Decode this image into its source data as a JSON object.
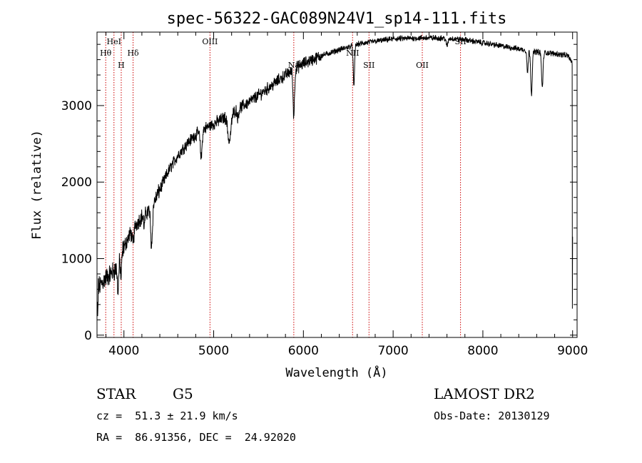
{
  "chart_data": {
    "type": "line",
    "title": "spec-56322-GAC089N24V1_sp14-111.fits",
    "xlabel": "Wavelength (Å)",
    "ylabel": "Flux (relative)",
    "xlim": [
      3700,
      9050
    ],
    "ylim": [
      -30,
      3960
    ],
    "xticks": [
      4000,
      5000,
      6000,
      7000,
      8000,
      9000
    ],
    "yticks": [
      0,
      1000,
      2000,
      3000
    ],
    "color": "#000000",
    "line_color": "#cc0000",
    "spectral_lines": [
      {
        "label": "Hθ",
        "x": 3797,
        "row": 2
      },
      {
        "label": "HeI",
        "x": 3889,
        "row": 1
      },
      {
        "label": "H",
        "x": 3970,
        "row": 3
      },
      {
        "label": "Hδ",
        "x": 4102,
        "row": 2
      },
      {
        "label": "OIII",
        "x": 4959,
        "row": 1
      },
      {
        "label": "Na",
        "x": 5893,
        "row": 3
      },
      {
        "label": "NII",
        "x": 6548,
        "row": 2
      },
      {
        "label": "SII",
        "x": 6731,
        "row": 3
      },
      {
        "label": "OII",
        "x": 7325,
        "row": 3
      },
      {
        "label": "SII",
        "x": 7751,
        "row": 1
      }
    ],
    "continuum": [
      [
        3700,
        600
      ],
      [
        3800,
        750
      ],
      [
        3900,
        850
      ],
      [
        4000,
        1150
      ],
      [
        4100,
        1400
      ],
      [
        4200,
        1550
      ],
      [
        4300,
        1650
      ],
      [
        4400,
        1900
      ],
      [
        4500,
        2150
      ],
      [
        4600,
        2350
      ],
      [
        4700,
        2500
      ],
      [
        4800,
        2620
      ],
      [
        4900,
        2700
      ],
      [
        5000,
        2760
      ],
      [
        5200,
        2900
      ],
      [
        5400,
        3050
      ],
      [
        5600,
        3220
      ],
      [
        5800,
        3400
      ],
      [
        6000,
        3550
      ],
      [
        6200,
        3650
      ],
      [
        6400,
        3730
      ],
      [
        6600,
        3800
      ],
      [
        6800,
        3840
      ],
      [
        7000,
        3870
      ],
      [
        7200,
        3880
      ],
      [
        7400,
        3885
      ],
      [
        7600,
        3880
      ],
      [
        7800,
        3860
      ],
      [
        8000,
        3820
      ],
      [
        8200,
        3780
      ],
      [
        8400,
        3740
      ],
      [
        8600,
        3700
      ],
      [
        8800,
        3680
      ],
      [
        8950,
        3650
      ],
      [
        9000,
        3550
      ]
    ],
    "absorption_features": [
      [
        3934,
        350,
        12
      ],
      [
        3968,
        300,
        10
      ],
      [
        4101,
        200,
        15
      ],
      [
        4226,
        150,
        10
      ],
      [
        4308,
        500,
        14
      ],
      [
        4861,
        350,
        14
      ],
      [
        5175,
        350,
        25
      ],
      [
        5270,
        120,
        10
      ],
      [
        5893,
        600,
        12
      ],
      [
        6563,
        550,
        10
      ],
      [
        7600,
        100,
        15
      ],
      [
        8498,
        300,
        10
      ],
      [
        8542,
        550,
        12
      ],
      [
        8662,
        450,
        12
      ]
    ],
    "noise_amplitude": 130
  },
  "footer": {
    "object_class": "STAR",
    "subclass": "G5",
    "redshift": "cz =  51.3 ± 21.9 km/s",
    "coords": "RA =  86.91356, DEC =  24.92020",
    "survey": "LAMOST DR2",
    "obs_date": "Obs-Date: 20130129"
  }
}
